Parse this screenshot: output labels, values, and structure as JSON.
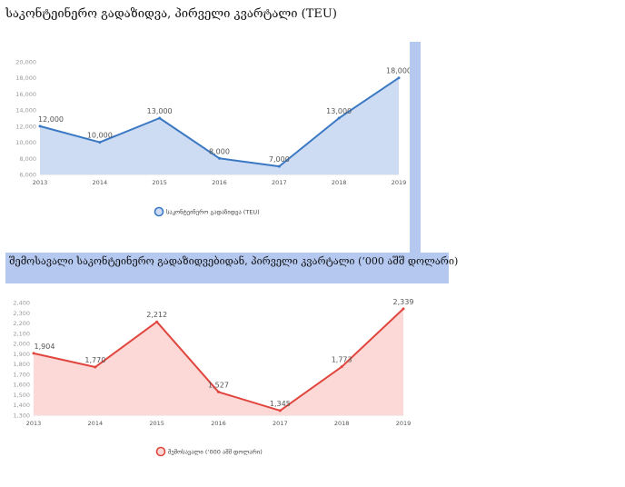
{
  "chart_data": [
    {
      "type": "area",
      "title": "საკონტეინერო გადაზიდვა, პირველი კვარტალი (TEU)",
      "categories": [
        "2013",
        "2014",
        "2015",
        "2016",
        "2017",
        "2018",
        "2019"
      ],
      "series": [
        {
          "name": "საკონტეინერო გადაზიდვა (TEU)",
          "values": [
            12000,
            10000,
            13000,
            8000,
            7000,
            13000,
            18000
          ],
          "labels": [
            "12,000",
            "10,000",
            "13,000",
            "8,000",
            "7,000",
            "13,000",
            "18,000"
          ]
        }
      ],
      "ylim": [
        6000,
        20000
      ],
      "yticks": [
        "6,000",
        "8,000",
        "10,000",
        "12,000",
        "14,000",
        "16,000",
        "18,000",
        "20,000"
      ],
      "ytick_values": [
        6000,
        8000,
        10000,
        12000,
        14000,
        16000,
        18000,
        20000
      ],
      "line_color": "#3a78c4",
      "fill_color": "#cddcf3",
      "grid": false,
      "legend": "bottom"
    },
    {
      "type": "area",
      "title": "შემოსავალი საკონტეინერო გადაზიდვებიდან, პირველი კვარტალი (‘000 აშშ დოლარი)",
      "categories": [
        "2013",
        "2014",
        "2015",
        "2016",
        "2017",
        "2018",
        "2019"
      ],
      "series": [
        {
          "name": "შემოსავალი (‘000 აშშ დოლარი)",
          "values": [
            1904,
            1770,
            2212,
            1527,
            1345,
            1773,
            2339
          ],
          "labels": [
            "1,904",
            "1,770",
            "2,212",
            "1,527",
            "1,345",
            "1,773",
            "2,339"
          ]
        }
      ],
      "ylim": [
        1300,
        2400
      ],
      "yticks": [
        "1,300",
        "1,400",
        "1,500",
        "1,600",
        "1,700",
        "1,800",
        "1,900",
        "2,000",
        "2,100",
        "2,200",
        "2,300",
        "2,400"
      ],
      "ytick_values": [
        1300,
        1400,
        1500,
        1600,
        1700,
        1800,
        1900,
        2000,
        2100,
        2200,
        2300,
        2400
      ],
      "line_color": "#e0463e",
      "fill_color": "#fcd8d6",
      "grid": false,
      "legend": "bottom"
    }
  ]
}
